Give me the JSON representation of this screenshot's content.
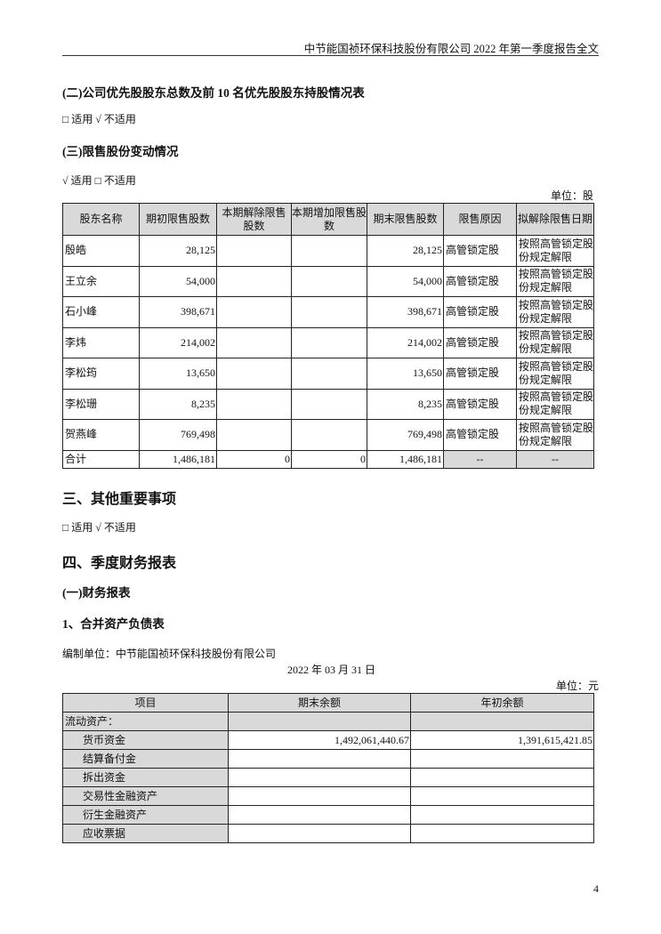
{
  "header": "中节能国祯环保科技股份有限公司 2022 年第一季度报告全文",
  "sec2": {
    "title": "(二)公司优先股股东总数及前 10 名优先股股东持股情况表",
    "applicability": "□ 适用 √ 不适用"
  },
  "sec3": {
    "title": "(三)限售股份变动情况",
    "applicability": "√ 适用 □ 不适用",
    "unit": "单位：股",
    "columns": [
      "股东名称",
      "期初限售股数",
      "本期解除限售股数",
      "本期增加限售股数",
      "期末限售股数",
      "限售原因",
      "拟解除限售日期"
    ],
    "rows": [
      [
        "殷皓",
        "28,125",
        "",
        "",
        "28,125",
        "高管锁定股",
        "按照高管锁定股份规定解限"
      ],
      [
        "王立余",
        "54,000",
        "",
        "",
        "54,000",
        "高管锁定股",
        "按照高管锁定股份规定解限"
      ],
      [
        "石小峰",
        "398,671",
        "",
        "",
        "398,671",
        "高管锁定股",
        "按照高管锁定股份规定解限"
      ],
      [
        "李炜",
        "214,002",
        "",
        "",
        "214,002",
        "高管锁定股",
        "按照高管锁定股份规定解限"
      ],
      [
        "李松筠",
        "13,650",
        "",
        "",
        "13,650",
        "高管锁定股",
        "按照高管锁定股份规定解限"
      ],
      [
        "李松珊",
        "8,235",
        "",
        "",
        "8,235",
        "高管锁定股",
        "按照高管锁定股份规定解限"
      ],
      [
        "贺燕峰",
        "769,498",
        "",
        "",
        "769,498",
        "高管锁定股",
        "按照高管锁定股份规定解限"
      ]
    ],
    "total": [
      "合计",
      "1,486,181",
      "0",
      "0",
      "1,486,181",
      "--",
      "--"
    ]
  },
  "part3": {
    "title": "三、其他重要事项",
    "applicability": "□ 适用 √ 不适用"
  },
  "part4": {
    "title": "四、季度财务报表",
    "sub1": "(一)财务报表",
    "sub2": "1、合并资产负债表",
    "compiler": "编制单位：中节能国祯环保科技股份有限公司",
    "date": "2022 年 03 月 31 日",
    "unit": "单位：元",
    "columns": [
      "项目",
      "期末余额",
      "年初余额"
    ],
    "section": "流动资产：",
    "rows": [
      [
        "货币资金",
        "1,492,061,440.67",
        "1,391,615,421.85"
      ],
      [
        "结算备付金",
        "",
        ""
      ],
      [
        "拆出资金",
        "",
        ""
      ],
      [
        "交易性金融资产",
        "",
        ""
      ],
      [
        "衍生金融资产",
        "",
        ""
      ],
      [
        "应收票据",
        "",
        ""
      ]
    ]
  },
  "page_number": "4"
}
